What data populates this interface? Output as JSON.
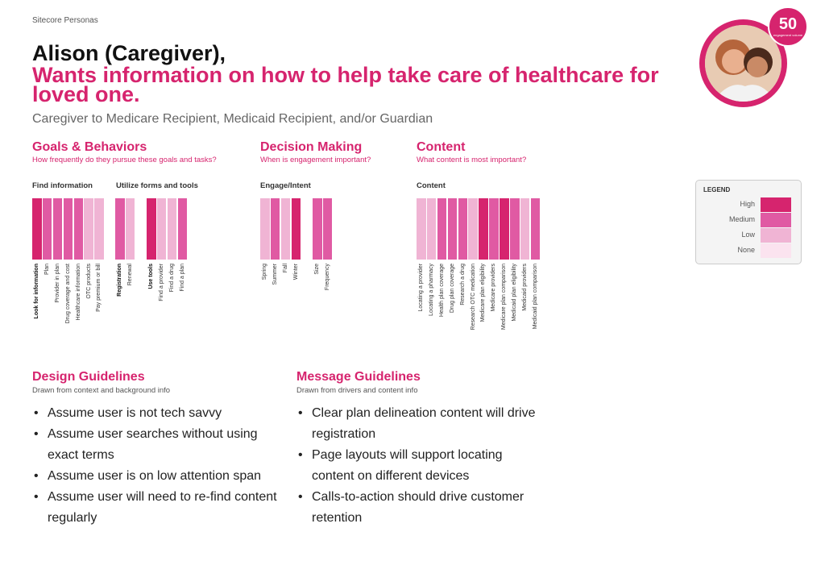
{
  "brand": "Sitecore Personas",
  "persona": {
    "name": "Alison (Caregiver),",
    "goal": "Wants information on how to help take care of healthcare for loved one.",
    "subtitle": "Caregiver to Medicare Recipient, Medicaid Recipient, and/or Guardian",
    "engagement_value": "50",
    "engagement_caption": "engagement volume"
  },
  "sections": {
    "goals": {
      "title": "Goals & Behaviors",
      "question": "How frequently do they pursue these goals and tasks?"
    },
    "decision": {
      "title": "Decision Making",
      "question": "When is engagement important?"
    },
    "content": {
      "title": "Content",
      "question": "What content is most important?"
    }
  },
  "colors": {
    "High": "#d6246e",
    "Medium": "#e05aa3",
    "Low": "#f0b4d4",
    "None": "#fbe3ef"
  },
  "chart_data": [
    {
      "type": "heatmap",
      "title": "Find information",
      "categories": [
        "Look for information",
        "Plan",
        "Provider in plan",
        "Drug coverage and cost",
        "Healthcare information",
        "OTC products",
        "Pay premium or bill"
      ],
      "levels": [
        "High",
        "Medium",
        "Medium",
        "Medium",
        "Medium",
        "Low",
        "Low"
      ]
    },
    {
      "type": "heatmap",
      "title": "Utilize forms and tools",
      "categories": [
        "Registration",
        "Renewal"
      ],
      "levels": [
        "Medium",
        "Low"
      ]
    },
    {
      "type": "heatmap",
      "title": "",
      "categories": [
        "Use tools",
        "Find a provider",
        "Find a drug",
        "Find a plan"
      ],
      "levels": [
        "High",
        "Low",
        "Low",
        "Medium"
      ]
    },
    {
      "type": "heatmap",
      "title": "Engage/Intent",
      "categories": [
        "Spring",
        "Summer",
        "Fall",
        "Winter"
      ],
      "levels": [
        "Low",
        "Medium",
        "Low",
        "High"
      ]
    },
    {
      "type": "heatmap",
      "title": "",
      "categories": [
        "Size",
        "Frequency"
      ],
      "levels": [
        "Medium",
        "Medium"
      ]
    },
    {
      "type": "heatmap",
      "title": "Content",
      "categories": [
        "Locating a provider",
        "Locating a pharmacy",
        "Health plan coverage",
        "Drug plan coverage",
        "Research a drug",
        "Research OTC medication",
        "Medicare plan eligibility",
        "Medicare providers",
        "Medicare plan comparison",
        "Medicaid plan eligibility",
        "Medicaid providers",
        "Medicaid plan comparison"
      ],
      "levels": [
        "Low",
        "Low",
        "Medium",
        "Medium",
        "Medium",
        "Low",
        "High",
        "Medium",
        "High",
        "Medium",
        "Low",
        "Medium"
      ]
    }
  ],
  "legend": {
    "title": "LEGEND",
    "items": [
      "High",
      "Medium",
      "Low",
      "None"
    ]
  },
  "design_guidelines": {
    "title": "Design Guidelines",
    "subtitle": "Drawn from context and background info",
    "items": [
      "Assume user is not tech savvy",
      "Assume user searches without using exact terms",
      "Assume user is on low attention span",
      "Assume user will need to re-find content regularly"
    ]
  },
  "message_guidelines": {
    "title": "Message Guidelines",
    "subtitle": "Drawn from drivers and content info",
    "items": [
      "Clear plan delineation content will drive registration",
      "Page layouts will support locating content on different devices",
      "Calls-to-action should drive customer retention"
    ]
  }
}
